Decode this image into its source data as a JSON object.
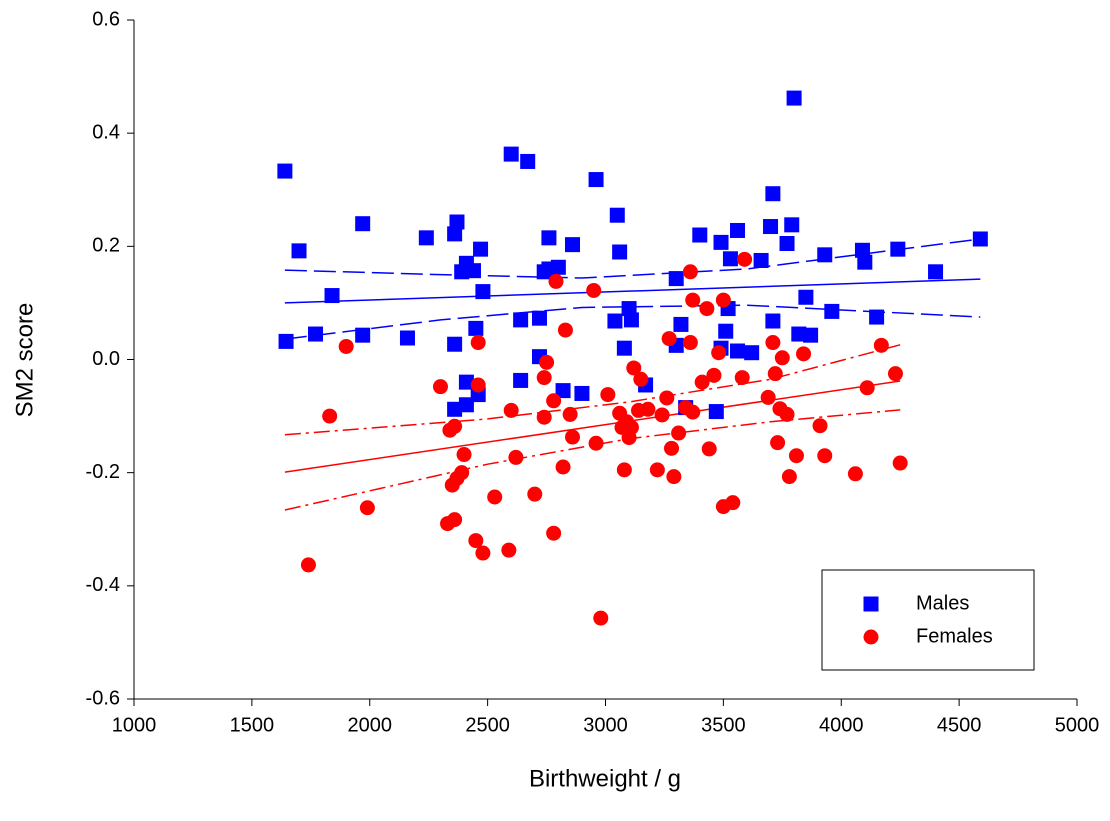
{
  "chart_data": {
    "type": "scatter",
    "xlabel": "Birthweight / g",
    "ylabel": "SM2 score",
    "xlim": [
      1000,
      5000
    ],
    "ylim": [
      -0.6,
      0.6
    ],
    "xticks": [
      1000,
      1500,
      2000,
      2500,
      3000,
      3500,
      4000,
      4500,
      5000
    ],
    "yticks": [
      -0.6,
      -0.4,
      -0.2,
      {
        "value": 0,
        "label": "0.0"
      },
      0.2,
      0.4,
      0.6
    ],
    "legend": "lower right",
    "series": [
      {
        "name": "Males",
        "color": "#0000ff",
        "marker": "square",
        "x": [
          1640,
          1645,
          1700,
          1770,
          1840,
          1970,
          1970,
          2160,
          2240,
          2360,
          2370,
          2360,
          2360,
          2390,
          2410,
          2440,
          2410,
          2410,
          2450,
          2460,
          2470,
          2480,
          2600,
          2640,
          2640,
          2670,
          2720,
          2720,
          2740,
          2760,
          2760,
          2800,
          2820,
          2860,
          2900,
          2960,
          3040,
          3050,
          3060,
          3080,
          3100,
          3110,
          3170,
          3300,
          3300,
          3320,
          3340,
          3400,
          3470,
          3490,
          3490,
          3510,
          3520,
          3530,
          3560,
          3560,
          3620,
          3660,
          3700,
          3710,
          3710,
          3770,
          3790,
          3800,
          3820,
          3850,
          3870,
          3930,
          3960,
          4090,
          4100,
          4150,
          4240,
          4400,
          4590
        ],
        "values": [
          0.333,
          0.032,
          0.192,
          0.045,
          0.113,
          0.24,
          0.043,
          0.038,
          0.215,
          0.222,
          0.243,
          0.027,
          -0.088,
          0.155,
          0.17,
          0.157,
          -0.04,
          -0.08,
          0.055,
          -0.062,
          0.195,
          0.12,
          0.363,
          0.07,
          -0.037,
          0.35,
          0.073,
          0.005,
          0.155,
          0.215,
          0.16,
          0.163,
          -0.055,
          0.203,
          -0.06,
          0.318,
          0.068,
          0.255,
          0.19,
          0.02,
          0.09,
          0.07,
          -0.045,
          0.143,
          0.025,
          0.062,
          -0.085,
          0.22,
          -0.092,
          0.02,
          0.207,
          0.05,
          0.09,
          0.178,
          0.228,
          0.015,
          0.012,
          0.175,
          0.235,
          0.293,
          0.068,
          0.205,
          0.238,
          0.462,
          0.045,
          0.11,
          0.043,
          0.185,
          0.085,
          0.193,
          0.172,
          0.075,
          0.195,
          0.155,
          0.213
        ]
      },
      {
        "name": "Females",
        "color": "#ff0000",
        "marker": "circle",
        "x": [
          1740,
          1830,
          1900,
          1990,
          2300,
          2330,
          2340,
          2350,
          2360,
          2360,
          2370,
          2390,
          2400,
          2450,
          2460,
          2460,
          2480,
          2530,
          2590,
          2600,
          2620,
          2700,
          2740,
          2740,
          2750,
          2780,
          2780,
          2790,
          2820,
          2830,
          2850,
          2860,
          2950,
          2960,
          2980,
          3010,
          3060,
          3070,
          3080,
          3090,
          3100,
          3110,
          3120,
          3140,
          3150,
          3180,
          3220,
          3240,
          3260,
          3270,
          3280,
          3290,
          3310,
          3340,
          3360,
          3360,
          3370,
          3370,
          3410,
          3430,
          3440,
          3460,
          3480,
          3500,
          3500,
          3540,
          3580,
          3590,
          3690,
          3710,
          3720,
          3730,
          3740,
          3750,
          3770,
          3780,
          3810,
          3840,
          3910,
          3930,
          4060,
          4110,
          4170,
          4230,
          4250
        ],
        "values": [
          -0.363,
          -0.1,
          0.023,
          -0.262,
          -0.048,
          -0.29,
          -0.125,
          -0.222,
          -0.118,
          -0.283,
          -0.21,
          -0.2,
          -0.168,
          -0.32,
          0.03,
          -0.045,
          -0.342,
          -0.243,
          -0.337,
          -0.09,
          -0.173,
          -0.238,
          -0.102,
          -0.032,
          -0.005,
          -0.073,
          -0.307,
          0.138,
          -0.19,
          0.052,
          -0.097,
          -0.137,
          0.122,
          -0.148,
          -0.457,
          -0.062,
          -0.095,
          -0.12,
          -0.195,
          -0.11,
          -0.138,
          -0.12,
          -0.015,
          -0.09,
          -0.035,
          -0.088,
          -0.195,
          -0.098,
          -0.068,
          0.037,
          -0.157,
          -0.207,
          -0.13,
          -0.085,
          0.03,
          0.155,
          -0.093,
          0.105,
          -0.04,
          0.09,
          -0.158,
          -0.028,
          0.012,
          0.105,
          -0.26,
          -0.253,
          -0.032,
          0.177,
          -0.067,
          0.03,
          -0.025,
          -0.147,
          -0.087,
          0.003,
          -0.097,
          -0.207,
          -0.17,
          0.01,
          -0.117,
          -0.17,
          -0.202,
          -0.05,
          0.025,
          -0.025,
          -0.183
        ]
      }
    ],
    "fit_lines": [
      {
        "color": "#0000ff",
        "dash": "solid",
        "x": [
          1640,
          4590
        ],
        "values": [
          0.1,
          0.142
        ]
      },
      {
        "color": "#0000ff",
        "dash": "dashed",
        "x": [
          1640,
          2300,
          2900,
          3600,
          4590
        ],
        "values": [
          0.158,
          0.15,
          0.144,
          0.16,
          0.213
        ]
      },
      {
        "color": "#0000ff",
        "dash": "dashed",
        "x": [
          1640,
          2300,
          2900,
          3600,
          4590
        ],
        "values": [
          0.036,
          0.07,
          0.092,
          0.096,
          0.075
        ]
      },
      {
        "color": "#ff0000",
        "dash": "solid",
        "x": [
          1640,
          4250
        ],
        "values": [
          -0.199,
          -0.038
        ]
      },
      {
        "color": "#ff0000",
        "dash": "dash-dot",
        "x": [
          1640,
          2500,
          3100,
          3700,
          4250
        ],
        "values": [
          -0.133,
          -0.105,
          -0.075,
          -0.035,
          0.026
        ]
      },
      {
        "color": "#ff0000",
        "dash": "dash-dot",
        "x": [
          1640,
          2500,
          3100,
          3700,
          4250
        ],
        "values": [
          -0.266,
          -0.185,
          -0.14,
          -0.11,
          -0.089
        ]
      }
    ]
  }
}
